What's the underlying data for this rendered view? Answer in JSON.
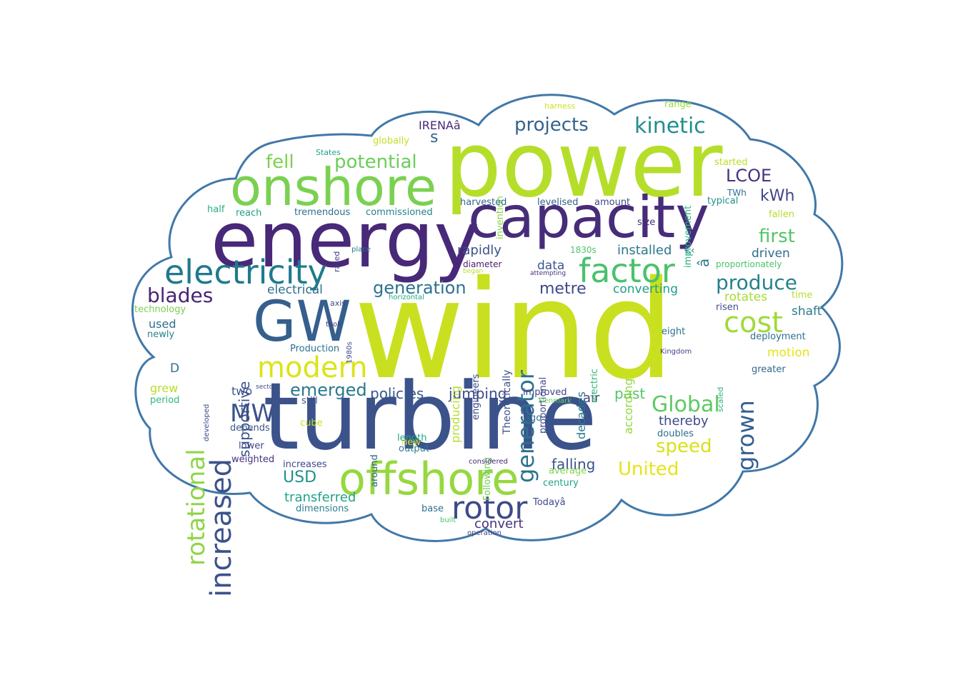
{
  "palette": {
    "outline": "#4178a8",
    "background": "#ffffff"
  },
  "words": [
    {
      "text": "wind",
      "color": "#c9e020"
    },
    {
      "text": "turbine",
      "color": "#3b528b"
    },
    {
      "text": "power",
      "color": "#b5de2b"
    },
    {
      "text": "energy",
      "color": "#482878"
    },
    {
      "text": "capacity",
      "color": "#472c7a"
    },
    {
      "text": "onshore",
      "color": "#7ad151"
    },
    {
      "text": "offshore",
      "color": "#95d840"
    },
    {
      "text": "GW",
      "color": "#355f8d"
    },
    {
      "text": "electricity",
      "color": "#1f7a8c"
    },
    {
      "text": "factor",
      "color": "#4ac16d"
    },
    {
      "text": "rotor",
      "color": "#3e4a89"
    },
    {
      "text": "modern",
      "color": "#dde318"
    },
    {
      "text": "cost",
      "color": "#9fda3a"
    },
    {
      "text": "increased",
      "color": "#3b528b"
    },
    {
      "text": "rotational",
      "color": "#8ed645"
    },
    {
      "text": "grown",
      "color": "#355f8d"
    },
    {
      "text": "generator",
      "color": "#2c728e"
    },
    {
      "text": "Global",
      "color": "#5ec962"
    },
    {
      "text": "kinetic",
      "color": "#218f8d"
    },
    {
      "text": "MW",
      "color": "#3b528b"
    },
    {
      "text": "produce",
      "color": "#26828e"
    },
    {
      "text": "blades",
      "color": "#482475"
    },
    {
      "text": "potential",
      "color": "#6ccd5a"
    },
    {
      "text": "fell",
      "color": "#7ad151"
    },
    {
      "text": "projects",
      "color": "#33638d"
    },
    {
      "text": "LCOE",
      "color": "#46337f"
    },
    {
      "text": "first",
      "color": "#54c568"
    },
    {
      "text": "generation",
      "color": "#2c728e"
    },
    {
      "text": "emerged",
      "color": "#2a788e"
    },
    {
      "text": "speed",
      "color": "#d8e219"
    },
    {
      "text": "United",
      "color": "#e7e419"
    },
    {
      "text": "metre",
      "color": "#3e4989"
    },
    {
      "text": "supportive",
      "color": "#3b528b"
    },
    {
      "text": "policies",
      "color": "#38588c"
    },
    {
      "text": "jumping",
      "color": "#3e4a89"
    },
    {
      "text": "past",
      "color": "#54c568"
    },
    {
      "text": "falling",
      "color": "#3b528b"
    },
    {
      "text": "USD",
      "color": "#21908d"
    },
    {
      "text": "transferred",
      "color": "#20a386"
    },
    {
      "text": "convert",
      "color": "#46327e"
    },
    {
      "text": "kWh",
      "color": "#414487"
    },
    {
      "text": "installed",
      "color": "#2a788e"
    },
    {
      "text": "rapidly",
      "color": "#3b528b"
    },
    {
      "text": "electrical",
      "color": "#2d708e"
    },
    {
      "text": "converting",
      "color": "#1f9e89"
    },
    {
      "text": "thereby",
      "color": "#3e4a89"
    },
    {
      "text": "rotates",
      "color": "#a5db36"
    },
    {
      "text": "shaft",
      "color": "#2a788e"
    },
    {
      "text": "motion",
      "color": "#e5e419"
    },
    {
      "text": "driven",
      "color": "#2e6e8e"
    },
    {
      "text": "data",
      "color": "#39568c"
    },
    {
      "text": "air",
      "color": "#443a83"
    },
    {
      "text": "two",
      "color": "#3b528b"
    },
    {
      "text": "grew",
      "color": "#b8de29"
    },
    {
      "text": "used",
      "color": "#2d708e"
    },
    {
      "text": "producing",
      "color": "#b5de2b"
    },
    {
      "text": "according",
      "color": "#93d741"
    },
    {
      "text": "decades",
      "color": "#2a788e"
    },
    {
      "text": "Theoretically",
      "color": "#3b528b"
    },
    {
      "text": "proportional",
      "color": "#3e4a89"
    },
    {
      "text": "engineers",
      "color": "#3e4a89"
    },
    {
      "text": "electric",
      "color": "#37b878"
    },
    {
      "text": "s",
      "color": "#31688e"
    },
    {
      "text": "D",
      "color": "#2d708e"
    },
    {
      "text": "IRENAâ",
      "color": "#482878"
    },
    {
      "text": "â",
      "color": "#2a788e"
    },
    {
      "text": "€‹",
      "color": "#2a788e"
    },
    {
      "text": "invention",
      "color": "#86d549"
    },
    {
      "text": "improvement",
      "color": "#2ab07f"
    },
    {
      "text": "harness",
      "color": "#d0e11c"
    },
    {
      "text": "range",
      "color": "#9bd93c"
    },
    {
      "text": "globally",
      "color": "#c2df23"
    },
    {
      "text": "States",
      "color": "#20a486"
    },
    {
      "text": "started",
      "color": "#bddf26"
    },
    {
      "text": "TWh",
      "color": "#2c728e"
    },
    {
      "text": "typical",
      "color": "#21918c"
    },
    {
      "text": "half",
      "color": "#29af7f"
    },
    {
      "text": "reach",
      "color": "#1fa188"
    },
    {
      "text": "tremendous",
      "color": "#2d708e"
    },
    {
      "text": "commissioned",
      "color": "#26828e"
    },
    {
      "text": "harvested",
      "color": "#31688e"
    },
    {
      "text": "levelised",
      "color": "#34618d"
    },
    {
      "text": "amount",
      "color": "#3e4a89"
    },
    {
      "text": "fallen",
      "color": "#b5de2b"
    },
    {
      "text": "size",
      "color": "#472d7b"
    },
    {
      "text": "rated",
      "color": "#443983"
    },
    {
      "text": "place",
      "color": "#2a788e"
    },
    {
      "text": "1830s",
      "color": "#52c569"
    },
    {
      "text": "proportionately",
      "color": "#4ac16d"
    },
    {
      "text": "diameter",
      "color": "#481b6d"
    },
    {
      "text": "began",
      "color": "#b5de2b"
    },
    {
      "text": "attempting",
      "color": "#46327e"
    },
    {
      "text": "axis",
      "color": "#3e4a89"
    },
    {
      "text": "horizontal",
      "color": "#22a884"
    },
    {
      "text": "technology",
      "color": "#7ad151"
    },
    {
      "text": "time",
      "color": "#b5de2b"
    },
    {
      "text": "risen",
      "color": "#3b528b"
    },
    {
      "text": "took",
      "color": "#46327e"
    },
    {
      "text": "1980s",
      "color": "#3e4a89"
    },
    {
      "text": "newly",
      "color": "#26828e"
    },
    {
      "text": "Production",
      "color": "#2c728e"
    },
    {
      "text": "deployment",
      "color": "#2d708e"
    },
    {
      "text": "eight",
      "color": "#2c728e"
    },
    {
      "text": "Kingdom",
      "color": "#414487"
    },
    {
      "text": "greater",
      "color": "#31688e"
    },
    {
      "text": "scaled",
      "color": "#31b57b"
    },
    {
      "text": "developed",
      "color": "#3e4a89"
    },
    {
      "text": "sector",
      "color": "#3e4a89"
    },
    {
      "text": "still",
      "color": "#3b528b"
    },
    {
      "text": "period",
      "color": "#32b67a"
    },
    {
      "text": "depends",
      "color": "#38588c"
    },
    {
      "text": "cube",
      "color": "#c8e020"
    },
    {
      "text": "new",
      "color": "#e2e418"
    },
    {
      "text": "length",
      "color": "#21a585"
    },
    {
      "text": "output",
      "color": "#2a788e"
    },
    {
      "text": "around",
      "color": "#33638d"
    },
    {
      "text": "Following",
      "color": "#6ccd5a"
    },
    {
      "text": "improved",
      "color": "#414487"
    },
    {
      "text": "Denmark",
      "color": "#6ccd5a"
    },
    {
      "text": "ago",
      "color": "#2d708e"
    },
    {
      "text": "doubles",
      "color": "#2e6e8e"
    },
    {
      "text": "lower",
      "color": "#404688"
    },
    {
      "text": "increases",
      "color": "#3e4989"
    },
    {
      "text": "weighted",
      "color": "#46327e"
    },
    {
      "text": "average",
      "color": "#81d34d"
    },
    {
      "text": "century",
      "color": "#21a685"
    },
    {
      "text": "considered",
      "color": "#482878"
    },
    {
      "text": "dimensions",
      "color": "#26828e"
    },
    {
      "text": "base",
      "color": "#2d708e"
    },
    {
      "text": "Todayâ",
      "color": "#3e4a89"
    },
    {
      "text": "built",
      "color": "#4ac16d"
    },
    {
      "text": "operation",
      "color": "#414487"
    }
  ]
}
